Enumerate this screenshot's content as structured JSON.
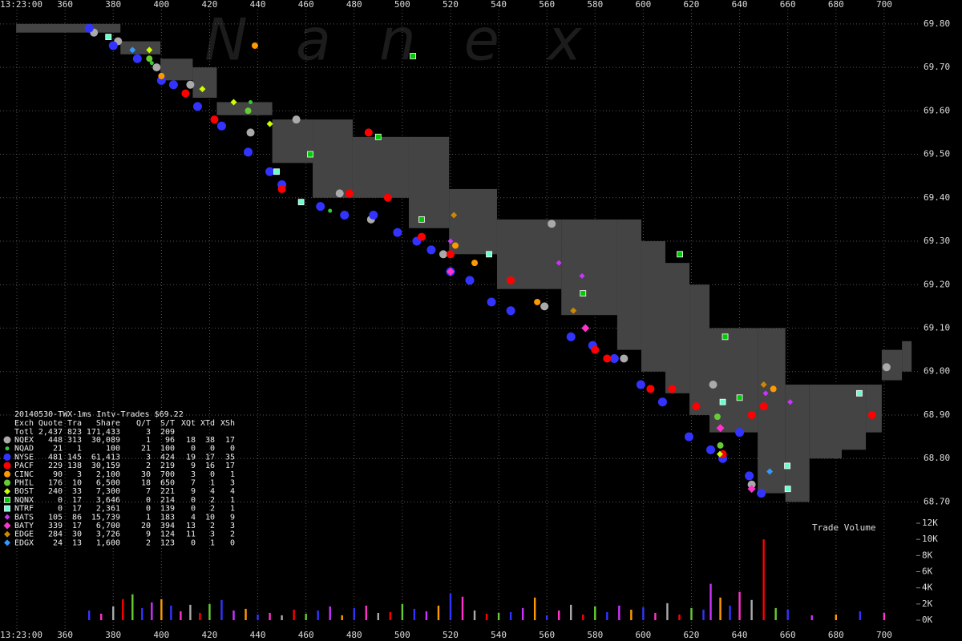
{
  "chart_data": {
    "type": "scatter",
    "xlim": [
      333,
      719
    ],
    "ylim": [
      68.675,
      69.855
    ],
    "xticks": [
      {
        "value": 340,
        "label": "13:23:00"
      },
      360,
      380,
      400,
      420,
      440,
      460,
      480,
      500,
      520,
      540,
      560,
      580,
      600,
      620,
      640,
      660,
      680,
      700
    ],
    "yticks": [
      {
        "value": 68.7,
        "label": "68.70"
      },
      {
        "value": 68.8,
        "label": "68.80"
      },
      {
        "value": 68.9,
        "label": "68.90"
      },
      {
        "value": 69.0,
        "label": "69.00"
      },
      {
        "value": 69.1,
        "label": "69.10"
      },
      {
        "value": 69.2,
        "label": "69.20"
      },
      {
        "value": 69.3,
        "label": "69.30"
      },
      {
        "value": 69.4,
        "label": "69.40"
      },
      {
        "value": 69.5,
        "label": "69.50"
      },
      {
        "value": 69.6,
        "label": "69.60"
      },
      {
        "value": 69.7,
        "label": "69.70"
      },
      {
        "value": 69.8,
        "label": "69.80"
      }
    ],
    "grid": true,
    "nbbo": {
      "color": "#444444",
      "x": [
        339.7,
        369.6,
        383,
        399.6,
        413,
        423,
        446,
        462.8,
        479.4,
        502.7,
        519.4,
        539.3,
        566,
        589.2,
        599.2,
        609.2,
        619.2,
        627.5,
        647.5,
        659,
        669,
        682.4,
        692.4,
        699,
        707.4
      ],
      "upper": [
        69.8,
        69.8,
        69.76,
        69.72,
        69.7,
        69.62,
        69.58,
        69.58,
        69.54,
        69.54,
        69.42,
        69.35,
        69.35,
        69.35,
        69.3,
        69.25,
        69.2,
        69.1,
        69.1,
        68.97,
        68.97,
        68.97,
        68.97,
        69.05,
        69.07
      ],
      "lower": [
        69.78,
        69.78,
        69.73,
        69.67,
        69.63,
        69.59,
        69.48,
        69.4,
        69.4,
        69.33,
        69.27,
        69.19,
        69.13,
        69.05,
        69.0,
        68.95,
        68.9,
        68.86,
        68.72,
        68.7,
        68.8,
        68.82,
        68.86,
        68.98,
        69.0
      ]
    },
    "series": [
      {
        "name": "NQEX",
        "color": "#aaaaaa",
        "shape": "circle",
        "size": 5,
        "x": [
          372,
          382,
          398,
          412,
          437,
          456,
          474,
          487,
          517,
          562,
          559,
          592,
          629,
          645,
          701
        ],
        "values": [
          69.78,
          69.76,
          69.7,
          69.66,
          69.55,
          69.58,
          69.41,
          69.35,
          69.27,
          69.34,
          69.15,
          69.03,
          68.97,
          68.74,
          69.01
        ]
      },
      {
        "name": "NQAD",
        "color": "#33cc33",
        "shape": "circle",
        "size": 2.5,
        "x": [
          396,
          437,
          470,
          645
        ],
        "values": [
          69.71,
          69.62,
          69.37,
          68.9
        ]
      },
      {
        "name": "NYSE",
        "color": "#3333ff",
        "shape": "circle",
        "size": 5.5,
        "x": [
          370,
          380,
          390,
          400,
          405,
          415,
          425,
          436,
          445,
          450,
          466,
          476,
          488,
          498,
          506,
          512,
          520,
          528,
          537,
          545,
          570,
          579,
          588,
          599,
          608,
          619,
          628,
          633,
          640,
          644,
          649
        ],
        "values": [
          69.79,
          69.75,
          69.72,
          69.67,
          69.66,
          69.61,
          69.565,
          69.505,
          69.46,
          69.43,
          69.38,
          69.36,
          69.36,
          69.32,
          69.3,
          69.28,
          69.23,
          69.21,
          69.16,
          69.14,
          69.08,
          69.06,
          69.03,
          68.97,
          68.93,
          68.85,
          68.82,
          68.8,
          68.86,
          68.76,
          68.72
        ]
      },
      {
        "name": "PACF",
        "color": "#ff0000",
        "shape": "circle",
        "size": 5,
        "x": [
          410,
          422,
          450,
          486,
          478,
          494,
          508,
          520,
          545,
          580,
          585,
          603,
          612,
          622,
          633,
          645,
          650,
          695
        ],
        "values": [
          69.64,
          69.58,
          69.42,
          69.55,
          69.41,
          69.4,
          69.31,
          69.27,
          69.21,
          69.05,
          69.03,
          68.96,
          68.96,
          68.92,
          68.81,
          68.9,
          68.92,
          68.9
        ]
      },
      {
        "name": "CINC",
        "color": "#ff9900",
        "shape": "circle",
        "size": 4,
        "x": [
          438.8,
          400,
          522,
          530,
          556,
          654
        ],
        "values": [
          69.75,
          69.68,
          69.29,
          69.25,
          69.16,
          68.96
        ]
      },
      {
        "name": "PHIL",
        "color": "#66cc33",
        "shape": "circle",
        "size": 4,
        "x": [
          395,
          436,
          630.8,
          632
        ],
        "values": [
          69.72,
          69.6,
          68.896,
          68.83
        ]
      },
      {
        "name": "BOST",
        "color": "#ccff00",
        "shape": "diamond",
        "size": 4,
        "x": [
          395,
          417,
          430,
          445,
          631.8
        ],
        "values": [
          69.74,
          69.65,
          69.62,
          69.57,
          68.81
        ]
      },
      {
        "name": "NQNX",
        "color": "#00cc00",
        "shape": "square",
        "size": 3.5,
        "x": [
          504.4,
          461.8,
          490,
          508,
          575,
          615.2,
          634,
          640
        ],
        "values": [
          69.726,
          69.5,
          69.54,
          69.35,
          69.18,
          69.27,
          69.08,
          68.94
        ]
      },
      {
        "name": "NTRF",
        "color": "#66ffcc",
        "shape": "square",
        "size": 3.5,
        "x": [
          378,
          447.8,
          458,
          536,
          633,
          659.8,
          689.7,
          660
        ],
        "values": [
          69.77,
          69.46,
          69.39,
          69.27,
          68.93,
          68.783,
          68.95,
          68.73
        ]
      },
      {
        "name": "BATS",
        "color": "#cc33ff",
        "shape": "diamond",
        "size": 3.5,
        "x": [
          520,
          565,
          574.6,
          650.8,
          661
        ],
        "values": [
          69.3,
          69.25,
          69.22,
          68.95,
          68.93
        ]
      },
      {
        "name": "BATY",
        "color": "#ff33cc",
        "shape": "diamond",
        "size": 5,
        "x": [
          520,
          576,
          632,
          645
        ],
        "values": [
          69.23,
          69.1,
          68.87,
          68.73
        ]
      },
      {
        "name": "EDGE",
        "color": "#cc8800",
        "shape": "diamond",
        "size": 4,
        "x": [
          571,
          521.4,
          650
        ],
        "values": [
          69.14,
          69.36,
          68.97
        ]
      },
      {
        "name": "EDGX",
        "color": "#3399ff",
        "shape": "diamond",
        "size": 4,
        "x": [
          652.5,
          388
        ],
        "values": [
          68.77,
          69.74
        ]
      }
    ],
    "volume": {
      "title": "Trade Volume",
      "ylim": [
        0,
        12000
      ],
      "yticks": [
        {
          "value": 0,
          "label": "0K"
        },
        {
          "value": 2000,
          "label": "2K"
        },
        {
          "value": 4000,
          "label": "4K"
        },
        {
          "value": 6000,
          "label": "6K"
        },
        {
          "value": 8000,
          "label": "8K"
        },
        {
          "value": 10000,
          "label": "10K"
        },
        {
          "value": 12000,
          "label": "12K"
        }
      ],
      "palette": [
        "#3333ff",
        "#ff33cc",
        "#aaaaaa",
        "#ff0000",
        "#66cc33",
        "#3333ff",
        "#cc33ff",
        "#ff9900"
      ],
      "x": [
        370,
        375,
        380,
        384,
        388,
        392,
        396,
        400,
        404,
        408,
        412,
        416,
        420,
        425,
        430,
        435,
        440,
        445,
        450,
        455,
        460,
        465,
        470,
        475,
        480,
        485,
        490,
        495,
        500,
        505,
        510,
        515,
        520,
        525,
        530,
        535,
        540,
        545,
        550,
        555,
        560,
        565,
        570,
        575,
        580,
        585,
        590,
        595,
        600,
        605,
        610,
        615,
        620,
        625,
        628,
        632,
        636,
        640,
        645,
        650,
        655,
        660,
        670,
        680,
        690,
        700
      ],
      "values": [
        1200,
        800,
        1700,
        2600,
        3200,
        1500,
        2200,
        2600,
        1800,
        1100,
        1900,
        900,
        2000,
        2500,
        1200,
        1400,
        700,
        900,
        600,
        1300,
        800,
        1200,
        1700,
        600,
        1500,
        1800,
        900,
        1000,
        2000,
        1400,
        1100,
        1800,
        3300,
        2900,
        1200,
        800,
        900,
        1000,
        1500,
        2800,
        600,
        1200,
        1900,
        700,
        1700,
        1000,
        1800,
        1300,
        1600,
        900,
        2100,
        700,
        1500,
        1300,
        4500,
        2800,
        1800,
        3500,
        2500,
        10000,
        1500,
        1300,
        600,
        700,
        1100,
        900
      ]
    }
  },
  "watermark": "Nanex",
  "stats": {
    "title": "20140530-TWX-1ms Intv-Trades $69.22",
    "header": [
      "Exch",
      "Quote",
      "Tra",
      "Share",
      "Q/T",
      "S/T",
      "XQt",
      "XTd",
      "XSh"
    ],
    "total": [
      "Totl",
      "2,437",
      "823",
      "171,433",
      "3",
      "209"
    ],
    "rows": [
      [
        "448",
        "313",
        "30,089",
        "1",
        "96",
        "18",
        "38",
        "17"
      ],
      [
        "21",
        "1",
        "100",
        "21",
        "100",
        "0",
        "0",
        "0"
      ],
      [
        "481",
        "145",
        "61,413",
        "3",
        "424",
        "19",
        "17",
        "35"
      ],
      [
        "229",
        "138",
        "30,159",
        "2",
        "219",
        "9",
        "16",
        "17"
      ],
      [
        "90",
        "3",
        "2,100",
        "30",
        "700",
        "3",
        "0",
        "1"
      ],
      [
        "176",
        "10",
        "6,500",
        "18",
        "650",
        "7",
        "1",
        "3"
      ],
      [
        "240",
        "33",
        "7,300",
        "7",
        "221",
        "9",
        "4",
        "4"
      ],
      [
        "0",
        "17",
        "3,646",
        "0",
        "214",
        "0",
        "2",
        "1"
      ],
      [
        "0",
        "17",
        "2,361",
        "0",
        "139",
        "0",
        "2",
        "1"
      ],
      [
        "105",
        "86",
        "15,739",
        "1",
        "183",
        "4",
        "10",
        "9"
      ],
      [
        "339",
        "17",
        "6,700",
        "20",
        "394",
        "13",
        "2",
        "3"
      ],
      [
        "284",
        "30",
        "3,726",
        "9",
        "124",
        "11",
        "3",
        "2"
      ],
      [
        "24",
        "13",
        "1,600",
        "2",
        "123",
        "0",
        "1",
        "0"
      ]
    ]
  }
}
